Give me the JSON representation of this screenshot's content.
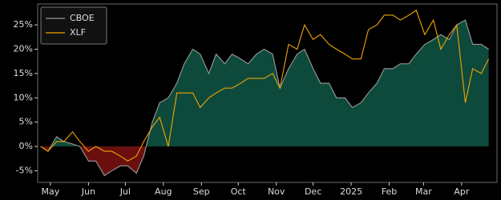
{
  "chart_data": {
    "type": "line",
    "x": [
      -8,
      -2,
      5,
      11,
      18,
      24,
      31,
      37,
      44,
      50,
      57,
      63,
      70,
      76,
      83,
      89,
      96,
      103,
      109,
      116,
      122,
      129,
      135,
      142,
      148,
      155,
      161,
      168,
      174,
      181,
      187,
      194,
      201,
      207,
      214,
      220,
      227,
      233,
      240,
      246,
      253,
      259,
      266,
      272,
      279,
      285,
      292,
      298,
      305,
      312,
      318,
      325,
      331,
      338,
      344,
      351,
      357
    ],
    "series": [
      {
        "name": "CBOE",
        "color": "#9a9a9a",
        "fill_positive": "#0e4a3b",
        "fill_negative": "#6a0f0f",
        "values": [
          0,
          -1,
          2,
          1,
          0.5,
          0,
          -3,
          -3,
          -6,
          -5,
          -4,
          -4,
          -5.5,
          -2,
          5,
          9,
          10,
          13,
          17,
          20,
          19,
          15,
          19,
          17,
          19,
          18,
          17,
          19,
          20,
          19,
          12,
          16,
          19,
          20,
          16,
          13,
          13,
          10,
          10,
          8,
          9,
          11,
          13,
          16,
          16,
          17,
          17,
          19,
          21,
          22,
          23,
          22,
          25,
          26,
          21,
          21,
          20
        ]
      },
      {
        "name": "XLF",
        "color": "#f0a500",
        "values": [
          0,
          -1,
          1,
          1,
          3,
          1,
          -1,
          0,
          -1,
          -1,
          -2,
          -3,
          -2,
          1,
          4,
          6,
          0,
          11,
          11,
          11,
          8,
          10,
          11,
          12,
          12,
          13,
          14,
          14,
          14,
          15,
          12,
          21,
          20,
          25,
          22,
          23,
          21,
          20,
          19,
          18,
          18,
          24,
          25,
          27,
          27,
          26,
          27,
          28,
          23,
          26,
          20,
          23,
          25,
          9,
          16,
          15,
          18
        ]
      }
    ],
    "xlim": [
      -10.4,
      363.8
    ],
    "xticks": [
      {
        "value": 0,
        "label": "May"
      },
      {
        "value": 31,
        "label": "Jun"
      },
      {
        "value": 61,
        "label": "Jul"
      },
      {
        "value": 92,
        "label": "Aug"
      },
      {
        "value": 123,
        "label": "Sep"
      },
      {
        "value": 153,
        "label": "Oct"
      },
      {
        "value": 184,
        "label": "Nov"
      },
      {
        "value": 214,
        "label": "Dec"
      },
      {
        "value": 245,
        "label": "2025"
      },
      {
        "value": 276,
        "label": "Feb"
      },
      {
        "value": 304,
        "label": "Mar"
      },
      {
        "value": 335,
        "label": "Apr"
      }
    ],
    "ylim": [
      -7.4,
      29.3
    ],
    "yticks": [
      {
        "value": -5,
        "label": "-5%"
      },
      {
        "value": 0,
        "label": "0%"
      },
      {
        "value": 5,
        "label": "5%"
      },
      {
        "value": 10,
        "label": "10%"
      },
      {
        "value": 15,
        "label": "15%"
      },
      {
        "value": 20,
        "label": "20%"
      },
      {
        "value": 25,
        "label": "25%"
      }
    ],
    "legend": "upper left"
  }
}
